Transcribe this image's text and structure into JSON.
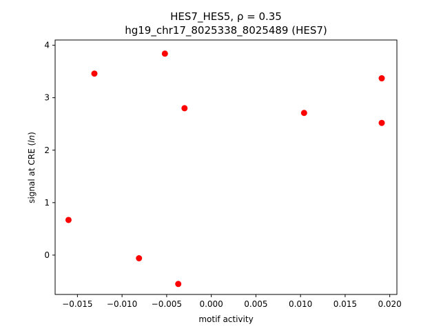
{
  "chart_data": {
    "type": "scatter",
    "title_line1": "HES7_HES5, ρ = 0.35",
    "title_line2": "hg19_chr17_8025338_8025489 (HES7)",
    "xlabel": "motif activity",
    "ylabel_prefix": "signal at CRE (",
    "ylabel_italic": "ln",
    "ylabel_suffix": ")",
    "xlim": [
      -0.0175,
      0.0208
    ],
    "ylim": [
      -0.75,
      4.1
    ],
    "xticks": [
      -0.015,
      -0.01,
      -0.005,
      0.0,
      0.005,
      0.01,
      0.015,
      0.02
    ],
    "xtick_labels": [
      "−0.015",
      "−0.010",
      "−0.005",
      "0.000",
      "0.005",
      "0.010",
      "0.015",
      "0.020"
    ],
    "yticks": [
      0,
      1,
      2,
      3,
      4
    ],
    "ytick_labels": [
      "0",
      "1",
      "2",
      "3",
      "4"
    ],
    "grid": false,
    "marker_color": "#ff0000",
    "points": [
      {
        "x": -0.016,
        "y": 0.67
      },
      {
        "x": -0.0131,
        "y": 3.46
      },
      {
        "x": -0.0081,
        "y": -0.06
      },
      {
        "x": -0.0052,
        "y": 3.84
      },
      {
        "x": -0.0037,
        "y": -0.55
      },
      {
        "x": -0.003,
        "y": 2.8
      },
      {
        "x": 0.0104,
        "y": 2.71
      },
      {
        "x": 0.0191,
        "y": 3.37
      },
      {
        "x": 0.0191,
        "y": 2.52
      }
    ]
  }
}
